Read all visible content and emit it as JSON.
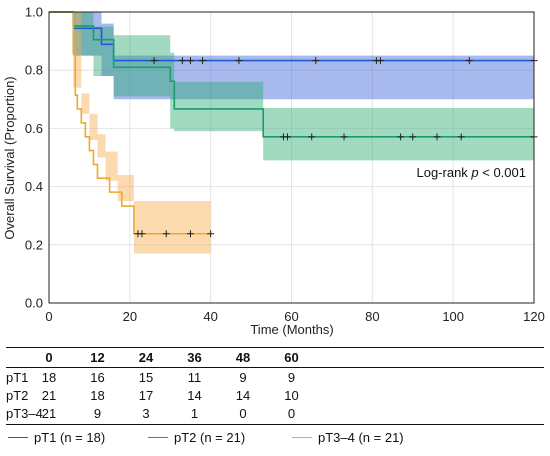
{
  "chart_data": {
    "type": "line",
    "subtype": "kaplan-meier",
    "xlabel": "Time (Months)",
    "ylabel": "Overall Survival (Proportion)",
    "xlim": [
      0,
      120
    ],
    "ylim": [
      0,
      1.0
    ],
    "xticks": [
      "0",
      "20",
      "40",
      "60",
      "80",
      "100",
      "120"
    ],
    "yticks": [
      "0.0",
      "0.2",
      "0.4",
      "0.6",
      "0.8",
      "1.0"
    ],
    "grid": true,
    "annotation": {
      "prefix": "Log-rank ",
      "italic": "p",
      "suffix": " < 0.001"
    },
    "series": [
      {
        "name": "pT1 (n = 18)",
        "color": "#1f5bd6",
        "band_color": "#3f63d6",
        "steps": [
          [
            0,
            1.0
          ],
          [
            6,
            0.944
          ],
          [
            13,
            0.889
          ],
          [
            16,
            0.833
          ]
        ],
        "end_x": 120,
        "ci_steps": [
          [
            0,
            1.0,
            1.0
          ],
          [
            6,
            0.85,
            1.0
          ],
          [
            13,
            0.78,
            0.96
          ],
          [
            16,
            0.7,
            0.85
          ]
        ],
        "censors": [
          26,
          33,
          35,
          38,
          47,
          66,
          81,
          82,
          104,
          120
        ]
      },
      {
        "name": "pT2 (n = 21)",
        "color": "#1a9d6a",
        "band_color": "#2eaa76",
        "steps": [
          [
            0,
            1.0
          ],
          [
            6,
            0.952
          ],
          [
            11,
            0.905
          ],
          [
            16,
            0.81
          ],
          [
            30,
            0.762
          ],
          [
            31,
            0.667
          ],
          [
            53,
            0.571
          ]
        ],
        "end_x": 120,
        "ci_steps": [
          [
            0,
            1.0,
            1.0
          ],
          [
            6,
            0.85,
            1.0
          ],
          [
            11,
            0.78,
            0.95
          ],
          [
            16,
            0.71,
            0.92
          ],
          [
            30,
            0.6,
            0.86
          ],
          [
            31,
            0.59,
            0.76
          ],
          [
            53,
            0.49,
            0.67
          ]
        ],
        "censors": [
          58,
          59,
          65,
          73,
          87,
          90,
          96,
          102,
          120
        ]
      },
      {
        "name": "pT3–4 (n = 21)",
        "color": "#f0a830",
        "band_color": "#f3ad4c",
        "steps": [
          [
            0,
            1.0
          ],
          [
            6,
            0.857
          ],
          [
            6.5,
            0.714
          ],
          [
            7,
            0.667
          ],
          [
            8,
            0.619
          ],
          [
            9,
            0.571
          ],
          [
            10,
            0.524
          ],
          [
            11,
            0.476
          ],
          [
            12,
            0.429
          ],
          [
            15,
            0.381
          ],
          [
            18,
            0.333
          ],
          [
            21,
            0.238
          ]
        ],
        "end_x": 40,
        "ci_steps": [
          [
            0,
            1.0,
            1.0
          ],
          [
            6,
            0.74,
            1.0
          ],
          [
            8,
            0.65,
            0.72
          ],
          [
            10,
            0.56,
            0.65
          ],
          [
            12,
            0.5,
            0.58
          ],
          [
            14,
            0.42,
            0.52
          ],
          [
            17,
            0.35,
            0.44
          ],
          [
            21,
            0.17,
            0.35
          ]
        ],
        "censors": [
          22,
          23,
          29,
          35,
          40
        ]
      }
    ]
  },
  "risk_table": {
    "times": [
      "0",
      "12",
      "24",
      "36",
      "48",
      "60"
    ],
    "time_values": [
      0,
      12,
      24,
      36,
      48,
      60
    ],
    "rows": [
      {
        "label": "pT1",
        "values": [
          "18",
          "16",
          "15",
          "11",
          "9",
          "9"
        ]
      },
      {
        "label": "pT2",
        "values": [
          "21",
          "18",
          "17",
          "14",
          "14",
          "10"
        ]
      },
      {
        "label": "pT3–4",
        "values": [
          "21",
          "9",
          "3",
          "1",
          "0",
          "0"
        ]
      }
    ]
  }
}
